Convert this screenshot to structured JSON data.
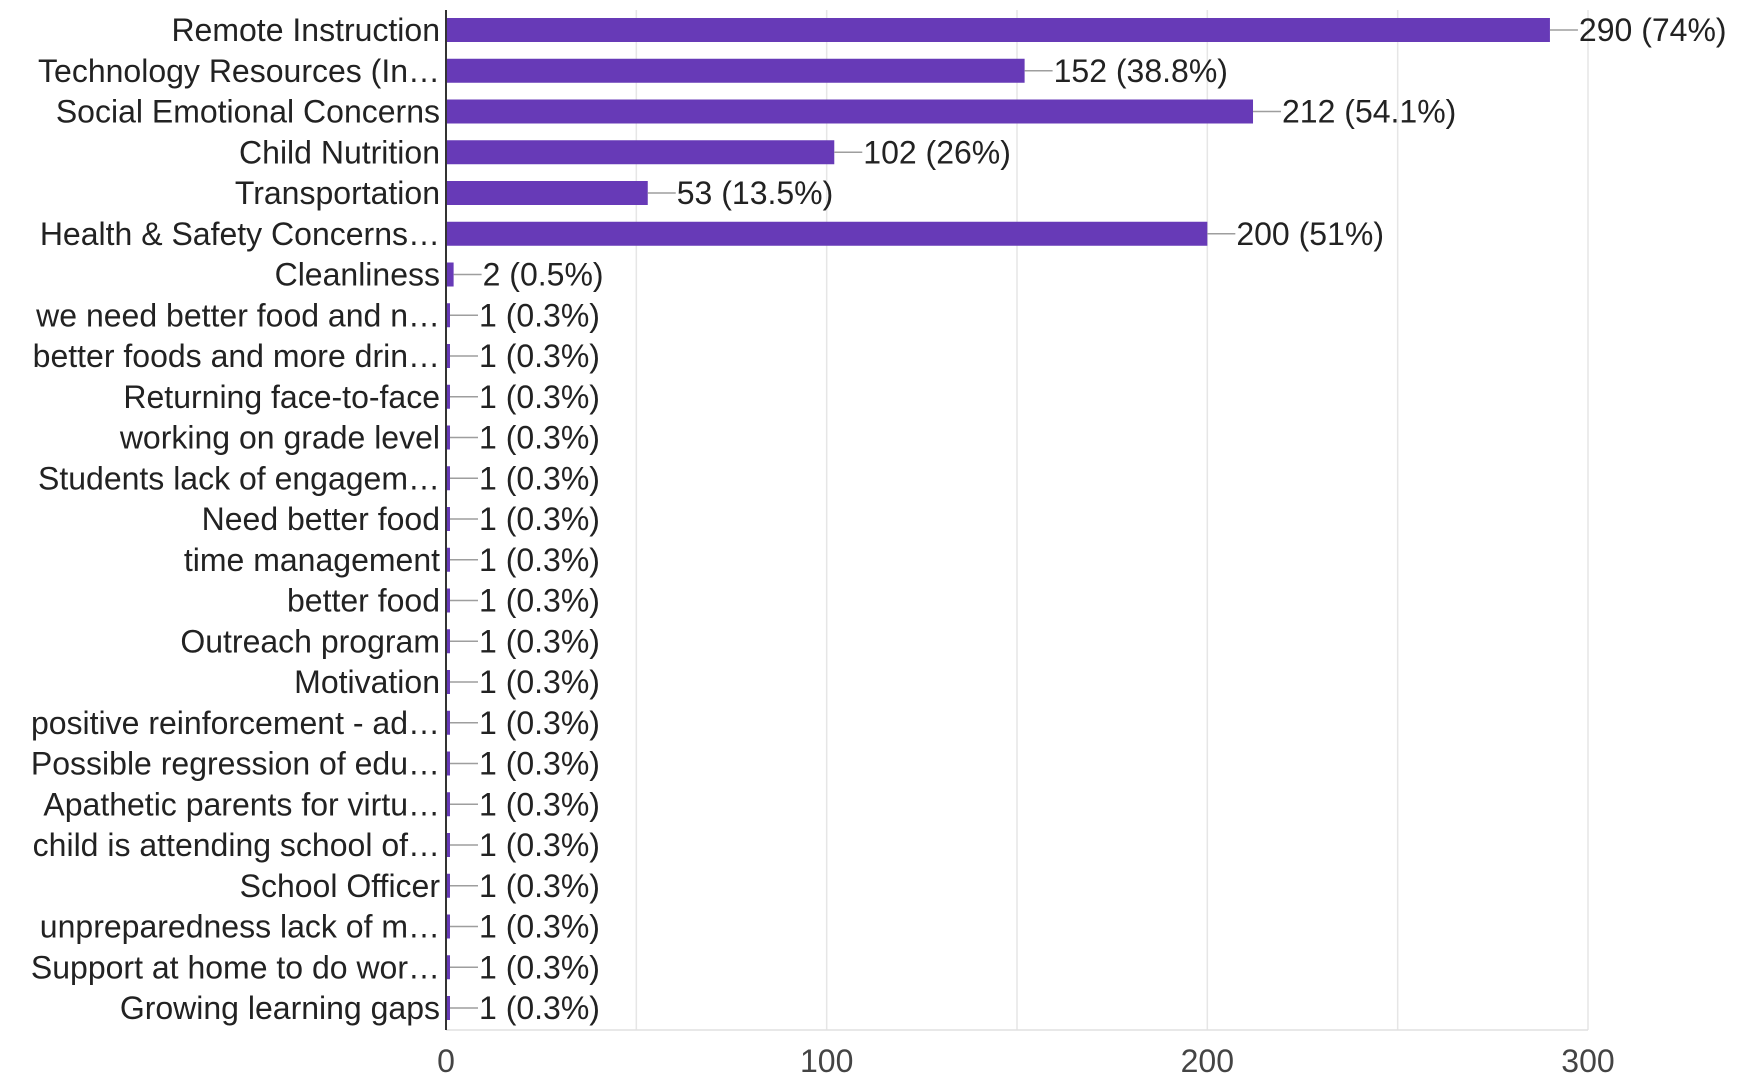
{
  "chart_data": {
    "type": "bar",
    "orientation": "horizontal",
    "title": "",
    "xlabel": "",
    "ylabel": "",
    "xlim": [
      0,
      300
    ],
    "xticks": [
      0,
      100,
      200,
      300
    ],
    "grid": true,
    "bar_color": "#673ab7",
    "categories": [
      "Remote Instruction",
      "Technology Resources (In…",
      "Social Emotional Concerns",
      "Child Nutrition",
      "Transportation",
      "Health & Safety Concerns…",
      "Cleanliness",
      "we need better food and n…",
      "better foods and more drin…",
      "Returning face-to-face",
      "working on grade level",
      "Students lack of engagem…",
      "Need better food",
      "time management",
      "better food",
      "Outreach program",
      "Motivation",
      "positive reinforcement - ad…",
      "Possible regression of edu…",
      "Apathetic parents for virtu…",
      "child is attending school of…",
      "School Officer",
      "unpreparedness lack of m…",
      "Support at home to do wor…",
      "Growing learning gaps"
    ],
    "values": [
      290,
      152,
      212,
      102,
      53,
      200,
      2,
      1,
      1,
      1,
      1,
      1,
      1,
      1,
      1,
      1,
      1,
      1,
      1,
      1,
      1,
      1,
      1,
      1,
      1
    ],
    "data_labels": [
      "290 (74%)",
      "152 (38.8%)",
      "212 (54.1%)",
      "102 (26%)",
      "53 (13.5%)",
      "200 (51%)",
      "2 (0.5%)",
      "1 (0.3%)",
      "1 (0.3%)",
      "1 (0.3%)",
      "1 (0.3%)",
      "1 (0.3%)",
      "1 (0.3%)",
      "1 (0.3%)",
      "1 (0.3%)",
      "1 (0.3%)",
      "1 (0.3%)",
      "1 (0.3%)",
      "1 (0.3%)",
      "1 (0.3%)",
      "1 (0.3%)",
      "1 (0.3%)",
      "1 (0.3%)",
      "1 (0.3%)",
      "1 (0.3%)"
    ]
  }
}
